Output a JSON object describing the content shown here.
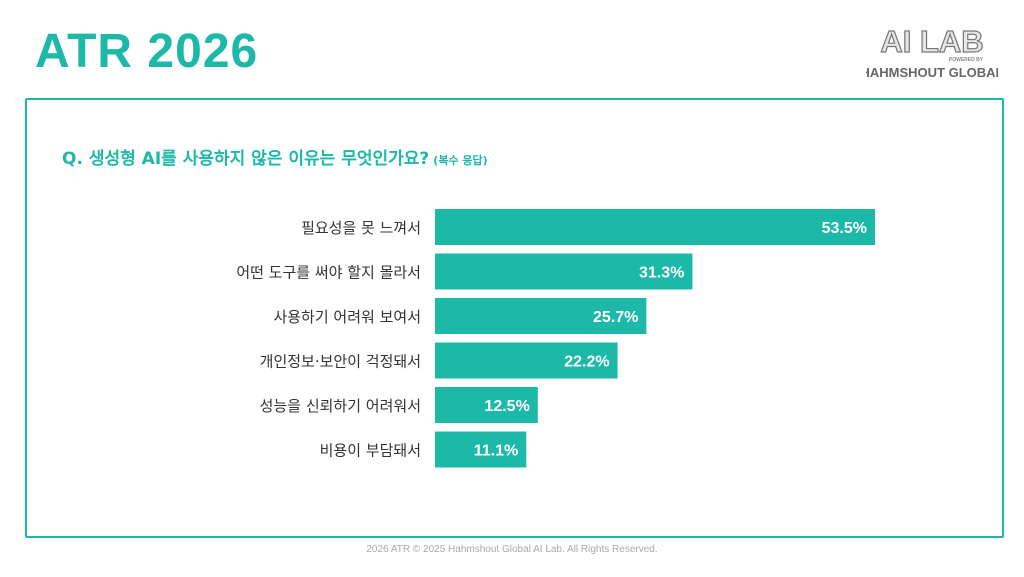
{
  "header": {
    "title": "ATR 2026"
  },
  "logo": {
    "main": "AI LAB",
    "tagline": "POWERED BY",
    "company": "HAHMSHOUT GLOBAL"
  },
  "question": {
    "text": "Q. 생성형 AI를 사용하지 않은 이유는 무엇인가요?",
    "note": "(복수 응답)"
  },
  "colors": {
    "accent": "#1cb8a8",
    "bar": "#1cb8a8",
    "bar_label": "#ffffff",
    "category_text": "#333333"
  },
  "chart_data": {
    "type": "bar",
    "orientation": "horizontal",
    "categories": [
      "필요성을 못 느껴서",
      "어떤 도구를 써야 할지 몰라서",
      "사용하기 어려워 보여서",
      "개인정보·보안이 걱정돼서",
      "성능을 신뢰하기 어려워서",
      "비용이 부담돼서"
    ],
    "values": [
      53.5,
      31.3,
      25.7,
      22.2,
      12.5,
      11.1
    ],
    "value_labels": [
      "53.5%",
      "31.3%",
      "25.7%",
      "22.2%",
      "12.5%",
      "11.1%"
    ],
    "unit": "%",
    "xlim": [
      0,
      53.5
    ],
    "grid": false,
    "legend": "none"
  },
  "footer": {
    "text": "2026 ATR © 2025 Hahmshout Global AI Lab. All Rights Reserved."
  }
}
